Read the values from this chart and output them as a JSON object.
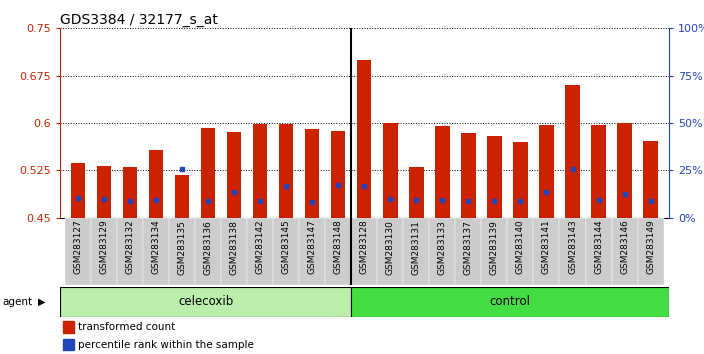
{
  "title": "GDS3384 / 32177_s_at",
  "samples": [
    "GSM283127",
    "GSM283129",
    "GSM283132",
    "GSM283134",
    "GSM283135",
    "GSM283136",
    "GSM283138",
    "GSM283142",
    "GSM283145",
    "GSM283147",
    "GSM283148",
    "GSM283128",
    "GSM283130",
    "GSM283131",
    "GSM283133",
    "GSM283137",
    "GSM283139",
    "GSM283140",
    "GSM283141",
    "GSM283143",
    "GSM283144",
    "GSM283146",
    "GSM283149"
  ],
  "red_values": [
    0.537,
    0.532,
    0.531,
    0.558,
    0.518,
    0.592,
    0.585,
    0.598,
    0.598,
    0.59,
    0.587,
    0.7,
    0.6,
    0.53,
    0.596,
    0.584,
    0.58,
    0.57,
    0.597,
    0.66,
    0.597,
    0.6,
    0.572
  ],
  "blue_values": [
    0.482,
    0.479,
    0.477,
    0.478,
    0.527,
    0.477,
    0.49,
    0.477,
    0.5,
    0.475,
    0.502,
    0.5,
    0.48,
    0.478,
    0.478,
    0.477,
    0.476,
    0.476,
    0.49,
    0.527,
    0.478,
    0.488,
    0.477
  ],
  "celecoxib_count": 11,
  "control_count": 12,
  "y_min": 0.45,
  "y_max": 0.75,
  "y_ticks_left": [
    0.45,
    0.525,
    0.6,
    0.675,
    0.75
  ],
  "y_ticks_right_pct": [
    0,
    25,
    50,
    75,
    100
  ],
  "bar_color": "#cc2200",
  "dot_color": "#2244bb",
  "celecoxib_color": "#aaeebb",
  "control_color": "#44cc44",
  "xtick_bg": "#cccccc",
  "agent_celecoxib_color": "#bbeeaa",
  "agent_control_color": "#44dd44"
}
